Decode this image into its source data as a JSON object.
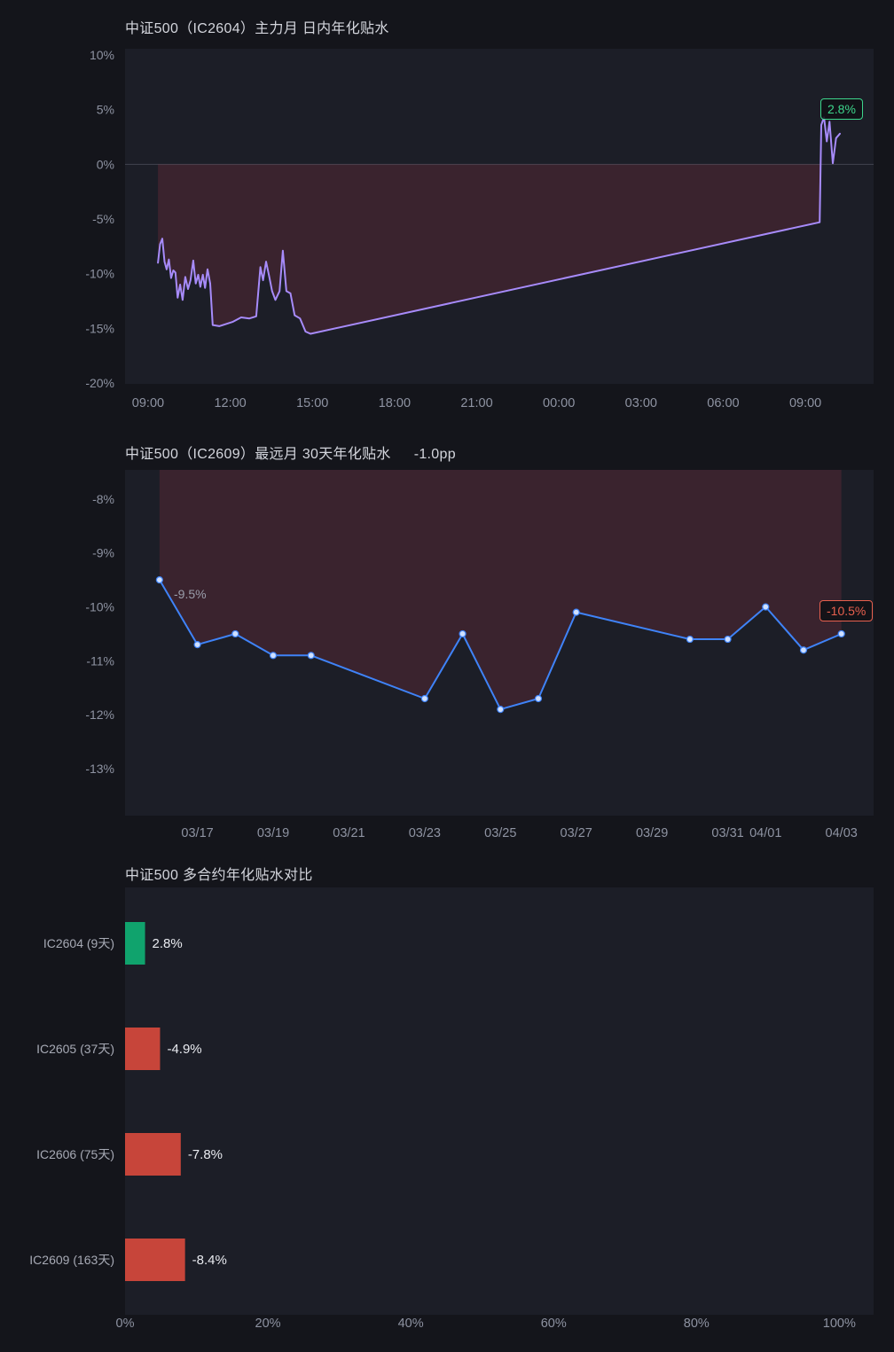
{
  "page": {
    "background": "#14151b",
    "panel": "#1c1e27",
    "tick_color": "#8e93a2",
    "category_color": "#a7aab5",
    "bar_label_color": "#e9ebf0",
    "zero_line_color": "#40434f",
    "annotation_color": "#9a9eab"
  },
  "chart_data": [
    {
      "id": "intraday",
      "type": "line",
      "title": "中证500（IC2604）主力月 日内年化贴水",
      "xlabel": "",
      "ylabel": "",
      "x_unit": "hours since 09:00",
      "x_range": [
        -0.84,
        26.49
      ],
      "y_range": [
        -20.08,
        10.57
      ],
      "x_ticks": [
        {
          "v": 0,
          "label": "09:00"
        },
        {
          "v": 3,
          "label": "12:00"
        },
        {
          "v": 6,
          "label": "15:00"
        },
        {
          "v": 9,
          "label": "18:00"
        },
        {
          "v": 12,
          "label": "21:00"
        },
        {
          "v": 15,
          "label": "00:00"
        },
        {
          "v": 18,
          "label": "03:00"
        },
        {
          "v": 21,
          "label": "06:00"
        },
        {
          "v": 24,
          "label": "09:00"
        }
      ],
      "y_ticks": [
        {
          "v": 10,
          "label": "10%"
        },
        {
          "v": 5,
          "label": "5%"
        },
        {
          "v": 0,
          "label": "0%"
        },
        {
          "v": -5,
          "label": "-5%"
        },
        {
          "v": -10,
          "label": "-10%"
        },
        {
          "v": -15,
          "label": "-15%"
        },
        {
          "v": -20,
          "label": "-20%"
        }
      ],
      "zero_line": true,
      "fill_below_zero": true,
      "markers": false,
      "line_color": "#a78bfa",
      "fill_color": "rgba(235,70,85,0.15)",
      "grid": false,
      "legend": "none",
      "series": [
        {
          "name": "日内年化贴水",
          "points": [
            [
              0.36,
              -9.0
            ],
            [
              0.44,
              -7.3
            ],
            [
              0.52,
              -6.8
            ],
            [
              0.6,
              -8.9
            ],
            [
              0.68,
              -9.6
            ],
            [
              0.76,
              -8.7
            ],
            [
              0.84,
              -10.4
            ],
            [
              0.92,
              -9.7
            ],
            [
              1.0,
              -9.9
            ],
            [
              1.08,
              -12.2
            ],
            [
              1.17,
              -11.0
            ],
            [
              1.26,
              -12.4
            ],
            [
              1.36,
              -10.3
            ],
            [
              1.46,
              -11.4
            ],
            [
              1.55,
              -10.6
            ],
            [
              1.65,
              -8.8
            ],
            [
              1.74,
              -10.9
            ],
            [
              1.83,
              -10.1
            ],
            [
              1.91,
              -11.2
            ],
            [
              2.0,
              -10.1
            ],
            [
              2.08,
              -11.3
            ],
            [
              2.17,
              -9.6
            ],
            [
              2.27,
              -10.9
            ],
            [
              2.36,
              -14.7
            ],
            [
              2.6,
              -14.8
            ],
            [
              2.85,
              -14.6
            ],
            [
              3.1,
              -14.4
            ],
            [
              3.4,
              -14.0
            ],
            [
              3.7,
              -14.1
            ],
            [
              3.95,
              -13.9
            ],
            [
              4.1,
              -9.4
            ],
            [
              4.2,
              -10.6
            ],
            [
              4.31,
              -8.9
            ],
            [
              4.42,
              -10.2
            ],
            [
              4.53,
              -11.6
            ],
            [
              4.65,
              -12.4
            ],
            [
              4.8,
              -11.6
            ],
            [
              4.92,
              -7.9
            ],
            [
              5.05,
              -11.6
            ],
            [
              5.2,
              -11.8
            ],
            [
              5.35,
              -13.8
            ],
            [
              5.55,
              -14.1
            ],
            [
              5.75,
              -15.3
            ],
            [
              5.93,
              -15.5
            ],
            [
              24.52,
              -5.3
            ],
            [
              24.58,
              3.6
            ],
            [
              24.68,
              4.3
            ],
            [
              24.78,
              2.1
            ],
            [
              24.88,
              3.9
            ],
            [
              25.0,
              0.1
            ],
            [
              25.12,
              2.4
            ],
            [
              25.26,
              2.8
            ]
          ]
        }
      ],
      "end_badge": {
        "text": "2.8%",
        "color": "#3dd68c"
      }
    },
    {
      "id": "thirty-day",
      "type": "line",
      "title": "中证500（IC2609）最远月 30天年化贴水",
      "title_suffix": "-1.0pp",
      "xlabel": "",
      "ylabel": "",
      "x_unit": "trading days from 03/16",
      "x_range": [
        -0.91,
        18.85
      ],
      "y_range": [
        -13.87,
        -7.46
      ],
      "x_ticks": [
        {
          "v": 1,
          "label": "03/17"
        },
        {
          "v": 3,
          "label": "03/19"
        },
        {
          "v": 5,
          "label": "03/21"
        },
        {
          "v": 7,
          "label": "03/23"
        },
        {
          "v": 9,
          "label": "03/25"
        },
        {
          "v": 11,
          "label": "03/27"
        },
        {
          "v": 13,
          "label": "03/29"
        },
        {
          "v": 15,
          "label": "03/31"
        },
        {
          "v": 16,
          "label": "04/01"
        },
        {
          "v": 18,
          "label": "04/03"
        }
      ],
      "y_ticks": [
        {
          "v": -8,
          "label": "-8%"
        },
        {
          "v": -9,
          "label": "-9%"
        },
        {
          "v": -10,
          "label": "-10%"
        },
        {
          "v": -11,
          "label": "-11%"
        },
        {
          "v": -12,
          "label": "-12%"
        },
        {
          "v": -13,
          "label": "-13%"
        }
      ],
      "zero_line": false,
      "fill_below_zero": true,
      "markers": true,
      "line_color": "#3f83f8",
      "marker_fill": "#cfe0ff",
      "fill_color": "rgba(235,70,85,0.15)",
      "grid": false,
      "legend": "none",
      "x_dates": [
        "03/16",
        "03/17",
        "03/18",
        "03/19",
        "03/20",
        "03/23",
        "03/24",
        "03/25",
        "03/26",
        "03/27",
        "03/30",
        "03/31",
        "04/01",
        "04/02",
        "04/03"
      ],
      "series": [
        {
          "name": "30天年化贴水",
          "points": [
            [
              0,
              -9.5
            ],
            [
              1,
              -10.7
            ],
            [
              2,
              -10.5
            ],
            [
              3,
              -10.9
            ],
            [
              4,
              -10.9
            ],
            [
              7,
              -11.7
            ],
            [
              8,
              -10.5
            ],
            [
              9,
              -11.9
            ],
            [
              10,
              -11.7
            ],
            [
              11,
              -10.1
            ],
            [
              14,
              -10.6
            ],
            [
              15,
              -10.6
            ],
            [
              16,
              -10.0
            ],
            [
              17,
              -10.8
            ],
            [
              18,
              -10.5
            ]
          ]
        }
      ],
      "first_point_label": "-9.5%",
      "end_badge": {
        "text": "-10.5%",
        "color": "#e8604e"
      }
    },
    {
      "id": "contracts-compare",
      "type": "bar",
      "title": "中证500 多合约年化贴水对比",
      "orientation": "horizontal",
      "categories": [
        "IC2604 (9天)",
        "IC2605 (37天)",
        "IC2606 (75天)",
        "IC2609 (163天)"
      ],
      "values": [
        2.8,
        -4.9,
        -7.8,
        -8.4
      ],
      "labels": [
        "2.8%",
        "-4.9%",
        "-7.8%",
        "-8.4%"
      ],
      "bar_colors": [
        "#10a36d",
        "#c7453a",
        "#c7453a",
        "#c7453a"
      ],
      "x_range": [
        0,
        104.8
      ],
      "x_ticks": [
        {
          "v": 0,
          "label": "0%"
        },
        {
          "v": 20,
          "label": "20%"
        },
        {
          "v": 40,
          "label": "40%"
        },
        {
          "v": 60,
          "label": "60%"
        },
        {
          "v": 80,
          "label": "80%"
        },
        {
          "v": 100,
          "label": "100%"
        }
      ],
      "grid": false,
      "legend": "none"
    }
  ]
}
